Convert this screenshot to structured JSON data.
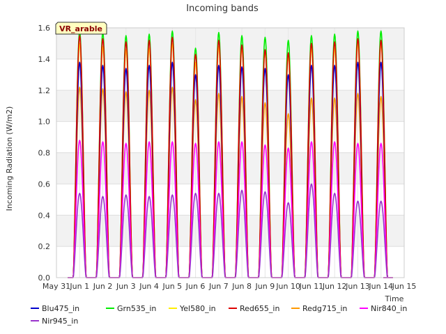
{
  "chart_data": {
    "type": "line",
    "title": "Incoming bands",
    "xlabel": "Time",
    "ylabel": "Incoming Radiation (W/m2)",
    "site_label": "VR_arable",
    "ylim": [
      0,
      1.6
    ],
    "yticks": [
      "0.0",
      "0.2",
      "0.4",
      "0.6",
      "0.8",
      "1.0",
      "1.2",
      "1.4",
      "1.6"
    ],
    "xticks": [
      "May 31",
      "Jun 1",
      "Jun 2",
      "Jun 3",
      "Jun 4",
      "Jun 5",
      "Jun 6",
      "Jun 7",
      "Jun 8",
      "Jun 9",
      "Jun 10",
      "Jun 11",
      "Jun 12",
      "Jun 13",
      "Jun 14",
      "Jun 15"
    ],
    "xlim_days": [
      0,
      15
    ],
    "grid": true,
    "legend_position": "bottom",
    "days": [
      "Jun 1",
      "Jun 2",
      "Jun 3",
      "Jun 4",
      "Jun 5",
      "Jun 6",
      "Jun 7",
      "Jun 8",
      "Jun 9",
      "Jun 10",
      "Jun 11",
      "Jun 12",
      "Jun 13",
      "Jun 14"
    ],
    "series": [
      {
        "name": "Blu475_in",
        "color": "#0000cc",
        "daily_peak": [
          1.38,
          1.36,
          1.34,
          1.36,
          1.38,
          1.3,
          1.36,
          1.35,
          1.34,
          1.3,
          1.36,
          1.36,
          1.38,
          1.38
        ]
      },
      {
        "name": "Grn535_in",
        "color": "#00ee00",
        "daily_peak": [
          1.58,
          1.57,
          1.55,
          1.56,
          1.58,
          1.47,
          1.57,
          1.55,
          1.54,
          1.52,
          1.55,
          1.56,
          1.58,
          1.58
        ]
      },
      {
        "name": "Yel580_in",
        "color": "#ffee00",
        "daily_peak": [
          1.5,
          1.48,
          1.46,
          1.47,
          1.5,
          1.38,
          1.48,
          1.47,
          1.45,
          1.42,
          1.47,
          1.47,
          1.5,
          1.5
        ]
      },
      {
        "name": "Red655_in",
        "color": "#dd0000",
        "daily_peak": [
          1.55,
          1.53,
          1.51,
          1.52,
          1.54,
          1.43,
          1.52,
          1.49,
          1.46,
          1.44,
          1.5,
          1.51,
          1.53,
          1.52
        ]
      },
      {
        "name": "Redg715_in",
        "color": "#ff9900",
        "daily_peak": [
          1.22,
          1.21,
          1.19,
          1.2,
          1.22,
          1.14,
          1.18,
          1.16,
          1.12,
          1.05,
          1.15,
          1.15,
          1.18,
          1.16
        ]
      },
      {
        "name": "Nir840_in",
        "color": "#ff00ff",
        "daily_peak": [
          0.88,
          0.87,
          0.86,
          0.87,
          0.87,
          0.86,
          0.87,
          0.87,
          0.85,
          0.83,
          0.87,
          0.87,
          0.86,
          0.86
        ]
      },
      {
        "name": "Nir945_in",
        "color": "#9933cc",
        "daily_peak": [
          0.54,
          0.52,
          0.53,
          0.52,
          0.53,
          0.54,
          0.54,
          0.56,
          0.55,
          0.48,
          0.6,
          0.54,
          0.49,
          0.49
        ]
      }
    ]
  }
}
